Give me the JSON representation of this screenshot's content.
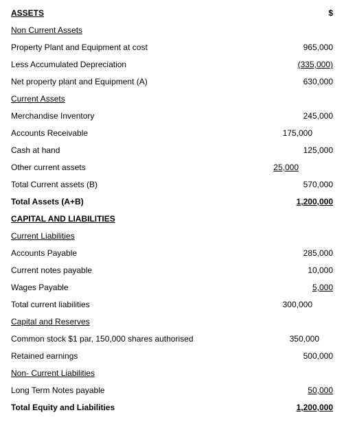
{
  "header": {
    "assets": "ASSETS",
    "currency": "$"
  },
  "sections": {
    "nonCurrentAssets": {
      "title": "Non Current Assets",
      "items": [
        {
          "label": "Property Plant and Equipment at cost",
          "value": "965,000",
          "underline": false
        },
        {
          "label": "Less Accumulated Depreciation",
          "value": "(335,000)",
          "underline": true
        },
        {
          "label": "Net property plant and Equipment     (A)",
          "value": "630,000",
          "underline": false
        }
      ]
    },
    "currentAssets": {
      "title": "Current Assets",
      "items": [
        {
          "label": "Merchandise Inventory",
          "value": "245,000",
          "indent": 0
        },
        {
          "label": "Accounts Receivable",
          "value": "175,000",
          "indent": 30
        },
        {
          "label": "Cash at hand",
          "value": "125,000",
          "indent": 0
        },
        {
          "label": "Other current assets",
          "value": "25,000",
          "indent": 50,
          "underline": true
        },
        {
          "label": "Total Current assets (B)",
          "value": "570,000",
          "indent": 0
        }
      ]
    },
    "totalAssets": {
      "label": "Total Assets  (A+B)",
      "value": "1,200,000"
    },
    "capitalLiabilities": {
      "title": "CAPITAL AND LIABILITIES"
    },
    "currentLiabilities": {
      "title": "Current Liabilities",
      "items": [
        {
          "label": "Accounts Payable",
          "value": "285,000"
        },
        {
          "label": "Current notes payable",
          "value": "10,000"
        },
        {
          "label": "Wages Payable",
          "value": "5,000",
          "underline": true
        },
        {
          "label": "Total current liabilities",
          "value": "300,000",
          "indent": 30
        }
      ]
    },
    "capitalReserves": {
      "title": "Capital and Reserves",
      "items": [
        {
          "label": "Common stock $1 par, 150,000 shares authorised",
          "value": "350,000",
          "indent": 20
        },
        {
          "label": "Retained earnings",
          "value": "500,000",
          "indent": 0
        }
      ]
    },
    "nonCurrentLiabilities": {
      "title": "Non- Current Liabilities",
      "items": [
        {
          "label": "Long Term Notes payable",
          "value": "50,000",
          "underline": true
        }
      ]
    },
    "totalEquity": {
      "label": "Total Equity and Liabilities",
      "value": "1,200,000"
    }
  },
  "style": {
    "fontSize": 12,
    "fontFamily": "Arial",
    "textColor": "#000000",
    "bgColor": "#ffffff"
  }
}
